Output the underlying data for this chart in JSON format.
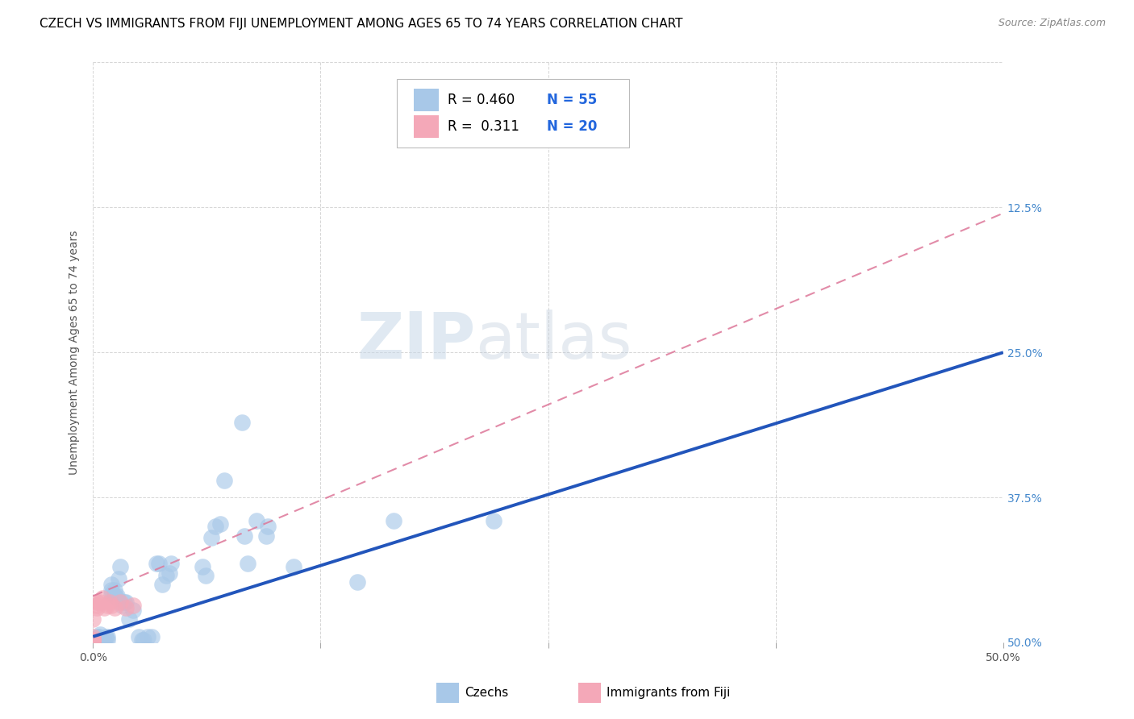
{
  "title": "CZECH VS IMMIGRANTS FROM FIJI UNEMPLOYMENT AMONG AGES 65 TO 74 YEARS CORRELATION CHART",
  "source": "Source: ZipAtlas.com",
  "ylabel": "Unemployment Among Ages 65 to 74 years",
  "xlim": [
    0.0,
    0.5
  ],
  "ylim": [
    0.0,
    0.5
  ],
  "xticks": [
    0.0,
    0.125,
    0.25,
    0.375,
    0.5
  ],
  "yticks": [
    0.0,
    0.125,
    0.25,
    0.375,
    0.5
  ],
  "xticklabels": [
    "0.0%",
    "",
    "",
    "",
    "50.0%"
  ],
  "right_yticklabels": [
    "50.0%",
    "37.5%",
    "25.0%",
    "12.5%",
    ""
  ],
  "czechs_color": "#a8c8e8",
  "fiji_color": "#f4a8b8",
  "czech_line_color": "#2255bb",
  "fiji_line_color": "#dd7799",
  "watermark_zip": "ZIP",
  "watermark_atlas": "atlas",
  "legend_R_czech": "R = 0.460",
  "legend_N_czech": "N = 55",
  "legend_R_fiji": "R =  0.311",
  "legend_N_fiji": "N = 20",
  "czech_line_x0": 0.0,
  "czech_line_y0": 0.005,
  "czech_line_x1": 0.5,
  "czech_line_y1": 0.25,
  "fiji_line_x0": 0.0,
  "fiji_line_y0": 0.04,
  "fiji_line_x1": 0.5,
  "fiji_line_y1": 0.37,
  "czechs_x": [
    0.0,
    0.0,
    0.0,
    0.0,
    0.0,
    0.003,
    0.003,
    0.004,
    0.005,
    0.005,
    0.006,
    0.007,
    0.008,
    0.008,
    0.01,
    0.01,
    0.01,
    0.012,
    0.012,
    0.013,
    0.013,
    0.014,
    0.015,
    0.016,
    0.017,
    0.018,
    0.02,
    0.022,
    0.025,
    0.027,
    0.028,
    0.03,
    0.032,
    0.035,
    0.036,
    0.038,
    0.04,
    0.042,
    0.043,
    0.06,
    0.062,
    0.065,
    0.067,
    0.07,
    0.072,
    0.082,
    0.083,
    0.085,
    0.09,
    0.095,
    0.096,
    0.11,
    0.145,
    0.165,
    0.22
  ],
  "czechs_y": [
    0.002,
    0.002,
    0.002,
    0.002,
    0.002,
    0.005,
    0.005,
    0.007,
    0.0,
    0.0,
    0.002,
    0.005,
    0.002,
    0.005,
    0.042,
    0.045,
    0.05,
    0.04,
    0.045,
    0.038,
    0.04,
    0.055,
    0.065,
    0.032,
    0.035,
    0.035,
    0.02,
    0.028,
    0.005,
    0.002,
    0.002,
    0.005,
    0.005,
    0.068,
    0.068,
    0.05,
    0.058,
    0.06,
    0.068,
    0.065,
    0.058,
    0.09,
    0.1,
    0.102,
    0.14,
    0.19,
    0.092,
    0.068,
    0.105,
    0.092,
    0.1,
    0.065,
    0.052,
    0.105,
    0.105
  ],
  "fiji_x": [
    0.0,
    0.0,
    0.0,
    0.0,
    0.0,
    0.0,
    0.0,
    0.002,
    0.002,
    0.002,
    0.004,
    0.005,
    0.006,
    0.008,
    0.009,
    0.01,
    0.012,
    0.015,
    0.018,
    0.022
  ],
  "fiji_y": [
    0.002,
    0.002,
    0.002,
    0.002,
    0.002,
    0.005,
    0.02,
    0.03,
    0.032,
    0.035,
    0.035,
    0.038,
    0.03,
    0.032,
    0.035,
    0.032,
    0.03,
    0.035,
    0.03,
    0.032
  ],
  "title_fontsize": 11,
  "source_fontsize": 9,
  "label_fontsize": 10,
  "tick_fontsize": 10,
  "legend_fontsize": 12
}
